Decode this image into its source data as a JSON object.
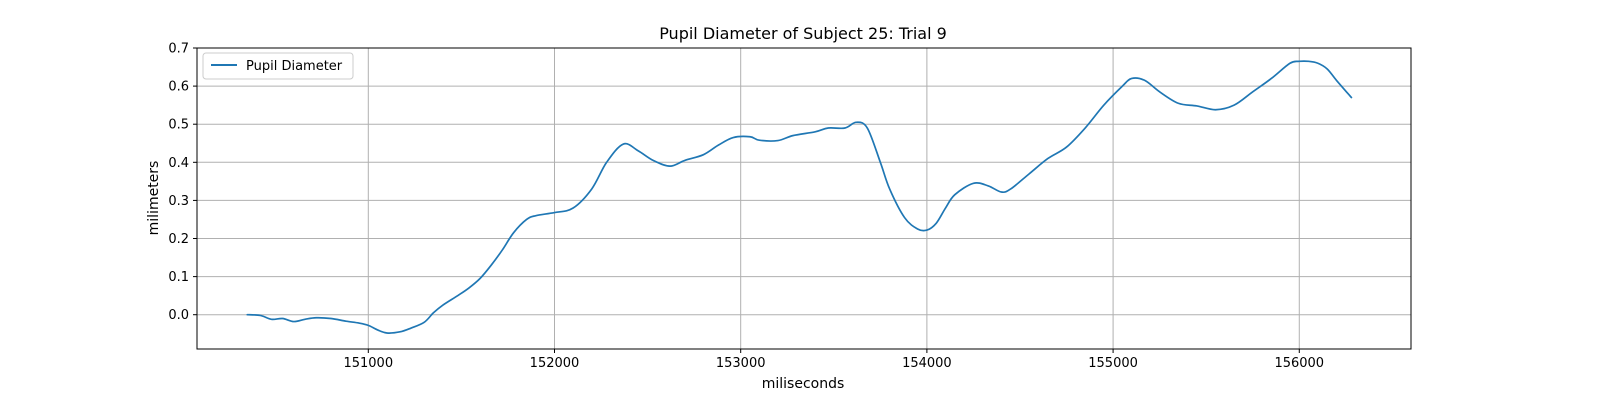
{
  "chart_data": {
    "type": "line",
    "title": "Pupil Diameter of Subject 25: Trial 9",
    "xlabel": "miliseconds",
    "ylabel": "milimeters",
    "xlim": [
      150080,
      156600
    ],
    "ylim": [
      -0.09,
      0.7
    ],
    "xticks": [
      151000,
      152000,
      153000,
      154000,
      155000,
      156000
    ],
    "xtick_labels": [
      "151000",
      "152000",
      "153000",
      "154000",
      "155000",
      "156000"
    ],
    "yticks": [
      0.0,
      0.1,
      0.2,
      0.3,
      0.4,
      0.5,
      0.6,
      0.7
    ],
    "ytick_labels": [
      "0.0",
      "0.1",
      "0.2",
      "0.3",
      "0.4",
      "0.5",
      "0.6",
      "0.7"
    ],
    "grid": true,
    "legend_position": "top-left",
    "series": [
      {
        "name": "Pupil Diameter",
        "color": "#1f77b4",
        "x": [
          150350,
          150420,
          150480,
          150540,
          150600,
          150660,
          150720,
          150800,
          150880,
          150950,
          151000,
          151050,
          151100,
          151170,
          151230,
          151300,
          151350,
          151400,
          151480,
          151540,
          151600,
          151660,
          151720,
          151780,
          151850,
          151900,
          152000,
          152100,
          152200,
          152280,
          152370,
          152450,
          152530,
          152620,
          152700,
          152800,
          152880,
          152960,
          153050,
          153100,
          153200,
          153280,
          153400,
          153470,
          153560,
          153620,
          153680,
          153750,
          153800,
          153880,
          153950,
          154000,
          154050,
          154100,
          154150,
          154250,
          154330,
          154400,
          154450,
          154550,
          154650,
          154750,
          154850,
          154950,
          155050,
          155100,
          155170,
          155250,
          155350,
          155450,
          155550,
          155650,
          155750,
          155850,
          155950,
          156000,
          156050,
          156100,
          156150,
          156200,
          156280
        ],
        "y": [
          0.0,
          -0.002,
          -0.012,
          -0.01,
          -0.018,
          -0.012,
          -0.008,
          -0.01,
          -0.017,
          -0.022,
          -0.028,
          -0.04,
          -0.048,
          -0.045,
          -0.035,
          -0.02,
          0.005,
          0.025,
          0.05,
          0.07,
          0.095,
          0.13,
          0.17,
          0.215,
          0.25,
          0.26,
          0.268,
          0.28,
          0.33,
          0.4,
          0.448,
          0.43,
          0.405,
          0.39,
          0.405,
          0.42,
          0.445,
          0.465,
          0.467,
          0.458,
          0.457,
          0.47,
          0.48,
          0.49,
          0.49,
          0.505,
          0.49,
          0.4,
          0.33,
          0.255,
          0.225,
          0.222,
          0.24,
          0.28,
          0.315,
          0.345,
          0.338,
          0.322,
          0.33,
          0.37,
          0.41,
          0.44,
          0.49,
          0.55,
          0.6,
          0.62,
          0.615,
          0.585,
          0.555,
          0.548,
          0.538,
          0.55,
          0.585,
          0.62,
          0.66,
          0.665,
          0.665,
          0.66,
          0.645,
          0.615,
          0.57
        ]
      }
    ]
  }
}
